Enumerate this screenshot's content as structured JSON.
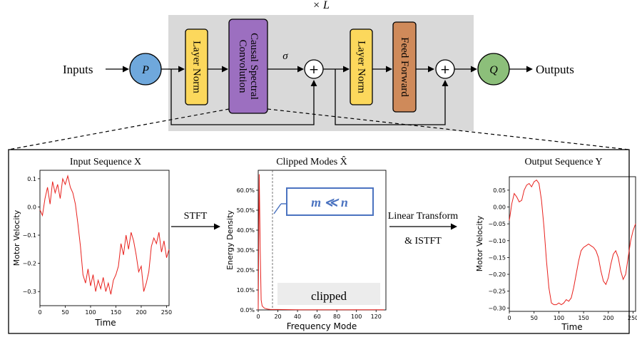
{
  "top": {
    "repeat_label": "× L",
    "inputs_label": "Inputs",
    "outputs_label": "Outputs",
    "p_label": "P",
    "q_label": "Q",
    "plus_1": "+",
    "plus_2": "+",
    "layer_norm_1": "Layer Norm",
    "causal_line1": "Causal Spectral",
    "causal_line2": "Convolution",
    "sigma": "σ",
    "layer_norm_2": "Layer Norm",
    "feed_forward": "Feed Forward"
  },
  "colors": {
    "block_bg": "#d9d9d9",
    "layer_norm": "#fcd85c",
    "causal_conv": "#9c6fc0",
    "feed_forward": "#cf8a5a",
    "p_node": "#6fa8dc",
    "q_node": "#8cbf7a",
    "signal": "#e8211d",
    "callout": "#4b73c0"
  },
  "bottom": {
    "stft_label": "STFT",
    "linear_transform_label": "Linear Transform",
    "istft_label": "& ISTFT"
  },
  "charts": {
    "input": {
      "title": "Input Sequence X",
      "xlabel": "Time",
      "ylabel": "Motor Velocity",
      "x_ticks": [
        "0",
        "50",
        "100",
        "150",
        "200",
        "250"
      ],
      "y_ticks": [
        "0.1",
        "0.0",
        "−0.1",
        "−0.2",
        "−0.3"
      ]
    },
    "modes": {
      "title": "Clipped Modes X̂",
      "xlabel": "Frequency Mode",
      "ylabel": "Energy Density",
      "x_ticks": [
        "0",
        "20",
        "40",
        "60",
        "80",
        "100",
        "120"
      ],
      "y_ticks": [
        "60.0%",
        "50.0%",
        "40.0%",
        "30.0%",
        "20.0%",
        "10.0%",
        "0.0%"
      ],
      "clipped_label": "clipped",
      "callout_label": "m ≪ n"
    },
    "output": {
      "title": "Output Sequence Y",
      "xlabel": "Time",
      "ylabel": "Motor Velocity",
      "x_ticks": [
        "0",
        "50",
        "100",
        "150",
        "200",
        "250"
      ],
      "y_ticks": [
        "0.05",
        "0.00",
        "−0.05",
        "−0.10",
        "−0.15",
        "−0.20",
        "−0.25",
        "−0.30"
      ]
    }
  },
  "chart_data": [
    {
      "type": "line",
      "xlabel": "Time",
      "ylabel": "Motor Velocity",
      "xlim": [
        0,
        255
      ],
      "ylim": [
        -0.35,
        0.13
      ],
      "series": [
        {
          "x": [
            0,
            5,
            10,
            15,
            20,
            25,
            30,
            35,
            40,
            45,
            50,
            55,
            60,
            65,
            70,
            75,
            80,
            85,
            90,
            95,
            100,
            105,
            110,
            115,
            120,
            125,
            130,
            135,
            140,
            145,
            150,
            155,
            160,
            165,
            170,
            175,
            180,
            185,
            190,
            195,
            200,
            205,
            210,
            215,
            220,
            225,
            230,
            235,
            240,
            245,
            250,
            255
          ],
          "y": [
            -0.01,
            -0.03,
            0.03,
            0.07,
            0.01,
            0.09,
            0.05,
            0.08,
            0.03,
            0.1,
            0.08,
            0.11,
            0.07,
            0.05,
            0.01,
            -0.06,
            -0.14,
            -0.24,
            -0.27,
            -0.22,
            -0.28,
            -0.24,
            -0.3,
            -0.26,
            -0.29,
            -0.25,
            -0.3,
            -0.27,
            -0.31,
            -0.26,
            -0.24,
            -0.21,
            -0.13,
            -0.17,
            -0.1,
            -0.15,
            -0.09,
            -0.12,
            -0.17,
            -0.23,
            -0.21,
            -0.3,
            -0.27,
            -0.23,
            -0.14,
            -0.11,
            -0.13,
            -0.09,
            -0.16,
            -0.12,
            -0.18,
            -0.15
          ]
        }
      ]
    },
    {
      "type": "line",
      "xlabel": "Frequency Mode",
      "ylabel": "Energy Density",
      "xlim": [
        0,
        130
      ],
      "ylim": [
        0,
        0.7
      ],
      "series": [
        {
          "x": [
            0,
            1,
            2,
            3,
            4,
            5,
            6,
            7,
            8,
            9,
            10,
            12,
            15,
            20,
            40,
            60,
            80,
            100,
            120,
            128
          ],
          "y": [
            0.0,
            0.68,
            0.3,
            0.05,
            0.02,
            0.015,
            0.01,
            0.008,
            0.006,
            0.005,
            0.004,
            0.003,
            0.002,
            0.002,
            0.001,
            0.001,
            0.001,
            0.001,
            0.001,
            0.001
          ]
        }
      ]
    },
    {
      "type": "line",
      "xlabel": "Time",
      "ylabel": "Motor Velocity",
      "xlim": [
        0,
        255
      ],
      "ylim": [
        -0.31,
        0.09
      ],
      "series": [
        {
          "x": [
            0,
            5,
            10,
            15,
            20,
            25,
            30,
            35,
            40,
            45,
            50,
            55,
            60,
            65,
            70,
            75,
            80,
            85,
            90,
            95,
            100,
            105,
            110,
            115,
            120,
            125,
            130,
            135,
            140,
            145,
            150,
            155,
            160,
            165,
            170,
            175,
            180,
            185,
            190,
            195,
            200,
            205,
            210,
            215,
            220,
            225,
            230,
            235,
            240,
            245,
            250,
            255
          ],
          "y": [
            -0.04,
            0.01,
            0.04,
            0.03,
            0.015,
            0.02,
            0.05,
            0.065,
            0.07,
            0.06,
            0.075,
            0.08,
            0.07,
            0.02,
            -0.06,
            -0.16,
            -0.24,
            -0.285,
            -0.29,
            -0.29,
            -0.285,
            -0.29,
            -0.285,
            -0.275,
            -0.28,
            -0.27,
            -0.24,
            -0.2,
            -0.16,
            -0.13,
            -0.12,
            -0.115,
            -0.11,
            -0.115,
            -0.12,
            -0.13,
            -0.15,
            -0.19,
            -0.22,
            -0.23,
            -0.21,
            -0.17,
            -0.14,
            -0.13,
            -0.15,
            -0.19,
            -0.215,
            -0.2,
            -0.15,
            -0.1,
            -0.07,
            -0.05
          ]
        }
      ]
    }
  ]
}
